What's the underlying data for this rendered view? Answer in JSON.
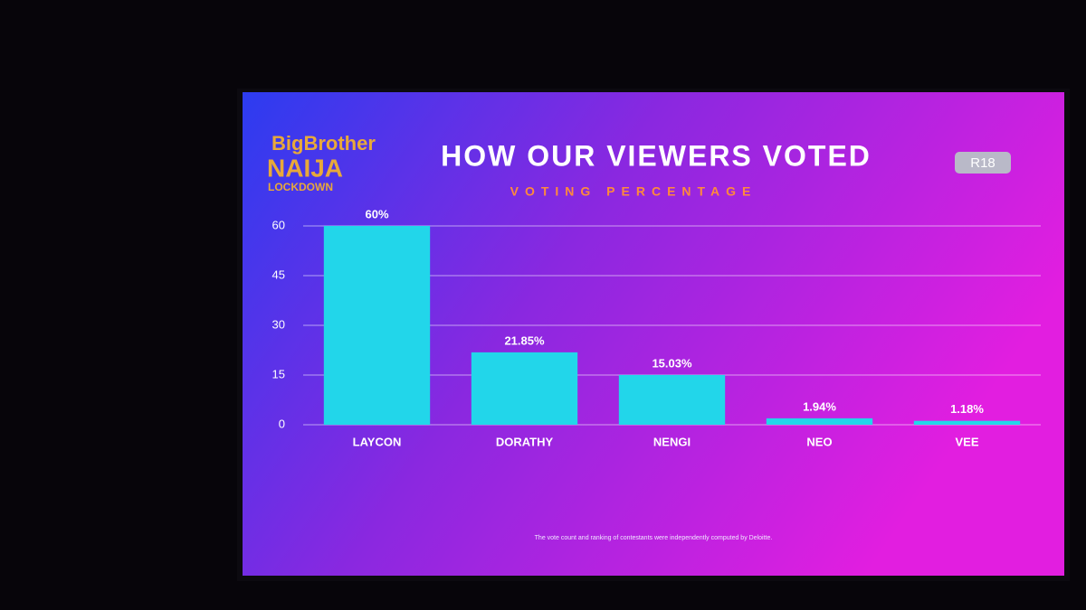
{
  "chart_data": {
    "type": "bar",
    "title": "HOW OUR VIEWERS VOTED",
    "subtitle": "VOTING PERCENTAGE",
    "categories": [
      "LAYCON",
      "DORATHY",
      "NENGI",
      "NEO",
      "VEE"
    ],
    "values": [
      60,
      21.85,
      15.03,
      1.94,
      1.18
    ],
    "value_labels": [
      "60%",
      "21.85%",
      "15.03%",
      "1.94%",
      "1.18%"
    ],
    "color": "#22d6ea",
    "ylim": [
      0,
      60
    ],
    "yticks": [
      0,
      15,
      30,
      45,
      60
    ],
    "grid": true,
    "footnote": "The vote count and ranking of contestants were independently computed by Deloitte."
  },
  "logo": {
    "line1": "BigBrother",
    "line2": "NAIJA",
    "line3": "LOCKDOWN"
  },
  "badge": "R18"
}
